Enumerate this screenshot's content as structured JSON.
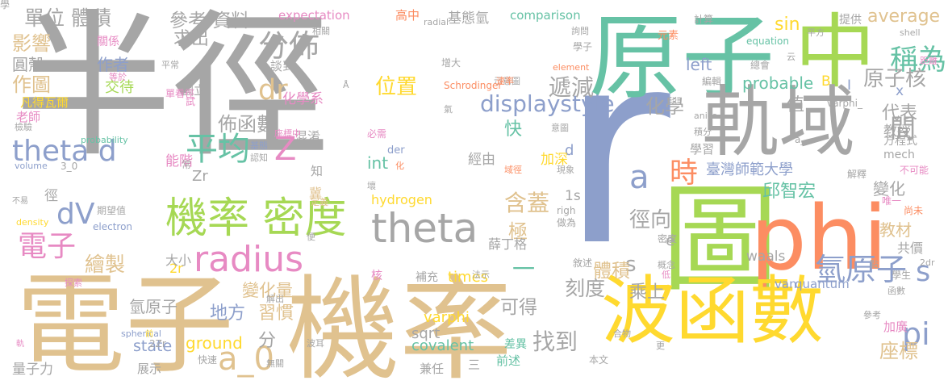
{
  "palette": {
    "gray": "#a6a6a6",
    "sand": "#e0c28f",
    "blue": "#8d9fcb",
    "teal": "#66c2a5",
    "green": "#a6d854",
    "orange": "#fc8d62",
    "pink": "#e78ac3",
    "yellow": "#ffd92f"
  },
  "words": [
    {
      "text": "半徑",
      "color": "gray",
      "weight": 10
    },
    {
      "text": "r",
      "color": "blue",
      "weight": 10
    },
    {
      "text": "機率",
      "color": "sand",
      "weight": 9
    },
    {
      "text": "電子",
      "color": "sand",
      "weight": 8
    },
    {
      "text": "原子",
      "color": "teal",
      "weight": 8
    },
    {
      "text": "中",
      "color": "green",
      "weight": 8
    },
    {
      "text": "圖",
      "color": "green",
      "weight": 8
    },
    {
      "text": "phi",
      "color": "orange",
      "weight": 8
    },
    {
      "text": "波函數",
      "color": "yellow",
      "weight": 8
    },
    {
      "text": "軌域",
      "color": "gray",
      "weight": 7
    },
    {
      "text": "機率 密度",
      "color": "green",
      "weight": 6
    },
    {
      "text": "radius",
      "color": "pink",
      "weight": 6
    },
    {
      "text": "theta",
      "color": "gray",
      "weight": 6
    },
    {
      "text": "theta d",
      "color": "blue",
      "weight": 5
    },
    {
      "text": "電子",
      "color": "pink",
      "weight": 5
    },
    {
      "text": "dV",
      "color": "blue",
      "weight": 5
    },
    {
      "text": "a_0",
      "color": "sand",
      "weight": 5
    },
    {
      "text": "平均",
      "color": "teal",
      "weight": 5
    },
    {
      "text": "Z",
      "color": "pink",
      "weight": 5
    },
    {
      "text": "a",
      "color": "blue",
      "weight": 5
    },
    {
      "text": "時",
      "color": "orange",
      "weight": 5
    },
    {
      "text": "dr",
      "color": "sand",
      "weight": 5
    },
    {
      "text": "分佈",
      "color": "gray",
      "weight": 5
    },
    {
      "text": "氫原子",
      "color": "blue",
      "weight": 5
    },
    {
      "text": "s",
      "color": "blue",
      "weight": 5
    },
    {
      "text": "pi",
      "color": "blue",
      "weight": 5
    },
    {
      "text": "稱為",
      "color": "teal",
      "weight": 5
    },
    {
      "text": "間",
      "color": "gray",
      "weight": 5
    },
    {
      "text": "單位 體積",
      "color": "gray",
      "weight": 4
    },
    {
      "text": "參考 資料",
      "color": "gray",
      "weight": 3
    },
    {
      "text": "位置",
      "color": "yellow",
      "weight": 4
    },
    {
      "text": "displaystyle",
      "color": "blue",
      "weight": 4
    },
    {
      "text": "遞減",
      "color": "gray",
      "weight": 4
    },
    {
      "text": "average",
      "color": "sand",
      "weight": 3
    },
    {
      "text": "sin",
      "color": "yellow",
      "weight": 3
    },
    {
      "text": "原子核",
      "color": "gray",
      "weight": 4
    },
    {
      "text": "一",
      "color": "teal",
      "weight": 5
    },
    {
      "text": "找到",
      "color": "gray",
      "weight": 4
    },
    {
      "text": "徑向",
      "color": "gray",
      "weight": 4
    },
    {
      "text": "s",
      "color": "gray",
      "weight": 4
    },
    {
      "text": "含蓋",
      "color": "sand",
      "weight": 4
    },
    {
      "text": "極",
      "color": "sand",
      "weight": 4
    },
    {
      "text": "影響",
      "color": "sand",
      "weight": 3
    },
    {
      "text": "圓殼",
      "color": "gray",
      "weight": 3
    },
    {
      "text": "作圖",
      "color": "sand",
      "weight": 3
    },
    {
      "text": "求出",
      "color": "gray",
      "weight": 3
    },
    {
      "text": "作者",
      "color": "blue",
      "weight": 3
    },
    {
      "text": "凡得瓦爾",
      "color": "yellow",
      "weight": 2
    },
    {
      "text": "交待",
      "color": "green",
      "weight": 2
    },
    {
      "text": "老師",
      "color": "pink",
      "weight": 2
    },
    {
      "text": "佈函數",
      "color": "gray",
      "weight": 3
    },
    {
      "text": "化學",
      "color": "gray",
      "weight": 3
    },
    {
      "text": "化學系",
      "color": "pink",
      "weight": 2
    },
    {
      "text": "快",
      "color": "teal",
      "weight": 3
    },
    {
      "text": "繪製",
      "color": "sand",
      "weight": 3
    },
    {
      "text": "變化量",
      "color": "sand",
      "weight": 3
    },
    {
      "text": "地方",
      "color": "blue",
      "weight": 3
    },
    {
      "text": "氫原子",
      "color": "gray",
      "weight": 2
    },
    {
      "text": "習慣",
      "color": "sand",
      "weight": 3
    },
    {
      "text": "state",
      "color": "blue",
      "weight": 3
    },
    {
      "text": "ground",
      "color": "yellow",
      "weight": 3
    },
    {
      "text": "分",
      "color": "gray",
      "weight": 3
    },
    {
      "text": "刻度",
      "color": "gray",
      "weight": 3
    },
    {
      "text": "可得",
      "color": "gray",
      "weight": 3
    },
    {
      "text": "座標",
      "color": "sand",
      "weight": 3
    },
    {
      "text": "代表",
      "color": "gray",
      "weight": 3
    },
    {
      "text": "值",
      "color": "gray",
      "weight": 3
    },
    {
      "text": "體積",
      "color": "sand",
      "weight": 3
    },
    {
      "text": "乘上",
      "color": "gray",
      "weight": 3
    },
    {
      "text": "臺灣師範大學",
      "color": "blue",
      "weight": 2
    },
    {
      "text": "邱智宏",
      "color": "teal",
      "weight": 3
    },
    {
      "text": "變化",
      "color": "gray",
      "weight": 3
    },
    {
      "text": "教材",
      "color": "sand",
      "weight": 2
    },
    {
      "text": "probable",
      "color": "teal",
      "weight": 2
    },
    {
      "text": "left",
      "color": "blue",
      "weight": 2
    },
    {
      "text": "B",
      "color": "yellow",
      "weight": 2
    },
    {
      "text": "x",
      "color": "blue",
      "weight": 2
    },
    {
      "text": "I",
      "color": "blue",
      "weight": 2
    },
    {
      "text": "expectation",
      "color": "pink",
      "weight": 1
    },
    {
      "text": "comparison",
      "color": "teal",
      "weight": 1
    },
    {
      "text": "基態氫",
      "color": "gray",
      "weight": 2
    },
    {
      "text": "高中",
      "color": "orange",
      "weight": 1
    },
    {
      "text": "int",
      "color": "teal",
      "weight": 2
    },
    {
      "text": "hydrogen",
      "color": "yellow",
      "weight": 2
    },
    {
      "text": "times",
      "color": "yellow",
      "weight": 2
    },
    {
      "text": "sqrt",
      "color": "gray",
      "weight": 2
    },
    {
      "text": "varphi",
      "color": "yellow",
      "weight": 2
    },
    {
      "text": "covalent",
      "color": "teal",
      "weight": 2
    },
    {
      "text": "waals",
      "color": "gray",
      "weight": 2
    },
    {
      "text": "van",
      "color": "blue",
      "weight": 1
    },
    {
      "text": "quantum",
      "color": "blue",
      "weight": 1
    },
    {
      "text": "1s",
      "color": "gray",
      "weight": 2
    },
    {
      "text": "2r",
      "color": "yellow",
      "weight": 2
    },
    {
      "text": "Zr",
      "color": "gray",
      "weight": 2
    },
    {
      "text": "d",
      "color": "blue",
      "weight": 2
    },
    {
      "text": "e",
      "color": "gray",
      "weight": 2
    },
    {
      "text": "徑",
      "color": "gray",
      "weight": 2
    },
    {
      "text": "薛丁格",
      "color": "gray",
      "weight": 2
    },
    {
      "text": "加深",
      "color": "yellow",
      "weight": 2
    },
    {
      "text": "經由",
      "color": "gray",
      "weight": 2
    },
    {
      "text": "混淆",
      "color": "gray",
      "weight": 2
    },
    {
      "text": "談到",
      "color": "gray",
      "weight": 2
    },
    {
      "text": "國立",
      "color": "gray",
      "weight": 2
    },
    {
      "text": "關係",
      "color": "pink",
      "weight": 1
    },
    {
      "text": "相關",
      "color": "gray",
      "weight": 1
    },
    {
      "text": "radial",
      "color": "gray",
      "weight": 1
    },
    {
      "text": "詢問",
      "color": "gray",
      "weight": 1
    },
    {
      "text": "學子",
      "color": "gray",
      "weight": 1
    },
    {
      "text": "增大",
      "color": "gray",
      "weight": 1
    },
    {
      "text": "示意圖",
      "color": "gray",
      "weight": 1
    },
    {
      "text": "element",
      "color": "orange",
      "weight": 1
    },
    {
      "text": "速率",
      "color": "orange",
      "weight": 1
    },
    {
      "text": "元素",
      "color": "orange",
      "weight": 1
    },
    {
      "text": "equation",
      "color": "teal",
      "weight": 1
    },
    {
      "text": "提供",
      "color": "gray",
      "weight": 2
    },
    {
      "text": "平方",
      "color": "gray",
      "weight": 1
    },
    {
      "text": "shell",
      "color": "gray",
      "weight": 1
    },
    {
      "text": "距離",
      "color": "pink",
      "weight": 1
    },
    {
      "text": "總會",
      "color": "gray",
      "weight": 1
    },
    {
      "text": "編輯",
      "color": "gray",
      "weight": 1
    },
    {
      "text": "varphi_",
      "color": "gray",
      "weight": 1
    },
    {
      "text": "教授",
      "color": "gray",
      "weight": 2
    },
    {
      "text": "方程式",
      "color": "gray",
      "weight": 1
    },
    {
      "text": "mech",
      "color": "gray",
      "weight": 1
    },
    {
      "text": "學習",
      "color": "gray",
      "weight": 2
    },
    {
      "text": "解釋",
      "color": "gray",
      "weight": 1
    },
    {
      "text": "不可能",
      "color": "pink",
      "weight": 1
    },
    {
      "text": "唯一",
      "color": "pink",
      "weight": 1
    },
    {
      "text": "尚未",
      "color": "orange",
      "weight": 1
    },
    {
      "text": "共價",
      "color": "gray",
      "weight": 2
    },
    {
      "text": "學生",
      "color": "gray",
      "weight": 1
    },
    {
      "text": "函數",
      "color": "gray",
      "weight": 1
    },
    {
      "text": "參考",
      "color": "gray",
      "weight": 1
    },
    {
      "text": "加廣",
      "color": "pink",
      "weight": 2
    },
    {
      "text": "2dr",
      "color": "gray",
      "weight": 1
    },
    {
      "text": "量子力",
      "color": "gray",
      "weight": 2
    },
    {
      "text": "展示",
      "color": "gray",
      "weight": 2
    },
    {
      "text": "快速",
      "color": "gray",
      "weight": 1
    },
    {
      "text": "無關",
      "color": "gray",
      "weight": 1
    },
    {
      "text": "前述",
      "color": "teal",
      "weight": 2
    },
    {
      "text": "兼任",
      "color": "gray",
      "weight": 2
    },
    {
      "text": "三",
      "color": "gray",
      "weight": 2
    },
    {
      "text": "本文",
      "color": "gray",
      "weight": 1
    },
    {
      "text": "差異",
      "color": "teal",
      "weight": 2
    },
    {
      "text": "合物",
      "color": "gray",
      "weight": 1
    },
    {
      "text": "解出",
      "color": "gray",
      "weight": 1
    },
    {
      "text": "波耳",
      "color": "gray",
      "weight": 1
    },
    {
      "text": "大小",
      "color": "gray",
      "weight": 2
    },
    {
      "text": "補充",
      "color": "gray",
      "weight": 2
    },
    {
      "text": "法示",
      "color": "gray",
      "weight": 1
    },
    {
      "text": "核",
      "color": "pink",
      "weight": 2
    },
    {
      "text": "spherical",
      "color": "blue",
      "weight": 1
    },
    {
      "text": "探索",
      "color": "pink",
      "weight": 1
    },
    {
      "text": "軌",
      "color": "pink",
      "weight": 1
    },
    {
      "text": "electron",
      "color": "blue",
      "weight": 1
    },
    {
      "text": "期望值",
      "color": "gray",
      "weight": 2
    },
    {
      "text": "不易",
      "color": "gray",
      "weight": 1
    },
    {
      "text": "density",
      "color": "yellow",
      "weight": 1
    },
    {
      "text": "3_0",
      "color": "gray",
      "weight": 1
    },
    {
      "text": "probability",
      "color": "teal",
      "weight": 1
    },
    {
      "text": "volume",
      "color": "blue",
      "weight": 1
    },
    {
      "text": "檢驗",
      "color": "gray",
      "weight": 1
    },
    {
      "text": "平常",
      "color": "gray",
      "weight": 1
    },
    {
      "text": "等於",
      "color": "pink",
      "weight": 1
    },
    {
      "text": "單看徑",
      "color": "pink",
      "weight": 1
    },
    {
      "text": "試",
      "color": "pink",
      "weight": 1
    },
    {
      "text": "Schrodinger",
      "color": "orange",
      "weight": 1
    },
    {
      "text": "Å",
      "color": "gray",
      "weight": 1
    },
    {
      "text": "氣",
      "color": "gray",
      "weight": 1
    },
    {
      "text": "必需",
      "color": "pink",
      "weight": 1
    },
    {
      "text": "der",
      "color": "blue",
      "weight": 1
    },
    {
      "text": "化",
      "color": "orange",
      "weight": 1
    },
    {
      "text": "意圖",
      "color": "gray",
      "weight": 1
    },
    {
      "text": "座標中",
      "color": "pink",
      "weight": 1
    },
    {
      "text": "基態",
      "color": "blue",
      "weight": 1
    },
    {
      "text": "認知",
      "color": "gray",
      "weight": 1
    },
    {
      "text": "能階",
      "color": "pink",
      "weight": 1
    },
    {
      "text": "常",
      "color": "gray",
      "weight": 2
    },
    {
      "text": "知",
      "color": "gray",
      "weight": 1
    },
    {
      "text": "冀",
      "color": "sand",
      "weight": 2
    },
    {
      "text": "定義",
      "color": "sand",
      "weight": 2
    },
    {
      "text": "壞",
      "color": "gray",
      "weight": 1
    },
    {
      "text": "域徑",
      "color": "orange",
      "weight": 1
    },
    {
      "text": "現象",
      "color": "gray",
      "weight": 1
    },
    {
      "text": "righ",
      "color": "gray",
      "weight": 1
    },
    {
      "text": "做為",
      "color": "gray",
      "weight": 1
    },
    {
      "text": "密度",
      "color": "gray",
      "weight": 1
    },
    {
      "text": "概念",
      "color": "gray",
      "weight": 1
    },
    {
      "text": "敘述",
      "color": "gray",
      "weight": 1
    },
    {
      "text": "低",
      "color": "pink",
      "weight": 1
    },
    {
      "text": "更",
      "color": "gray",
      "weight": 1
    },
    {
      "text": "點",
      "color": "gray",
      "weight": 1
    },
    {
      "text": "便",
      "color": "gray",
      "weight": 1
    },
    {
      "text": "anics",
      "color": "gray",
      "weight": 1
    },
    {
      "text": "積分",
      "color": "gray",
      "weight": 1
    },
    {
      "text": "計算",
      "color": "gray",
      "weight": 1
    },
    {
      "text": "云",
      "color": "gray",
      "weight": 1
    },
    {
      "text": "a_",
      "color": "gray",
      "weight": 1
    },
    {
      "text": "前",
      "color": "yellow",
      "weight": 1
    },
    {
      "text": "2Zr",
      "color": "gray",
      "weight": 1
    },
    {
      "text": "學",
      "color": "gray",
      "weight": 1
    }
  ]
}
